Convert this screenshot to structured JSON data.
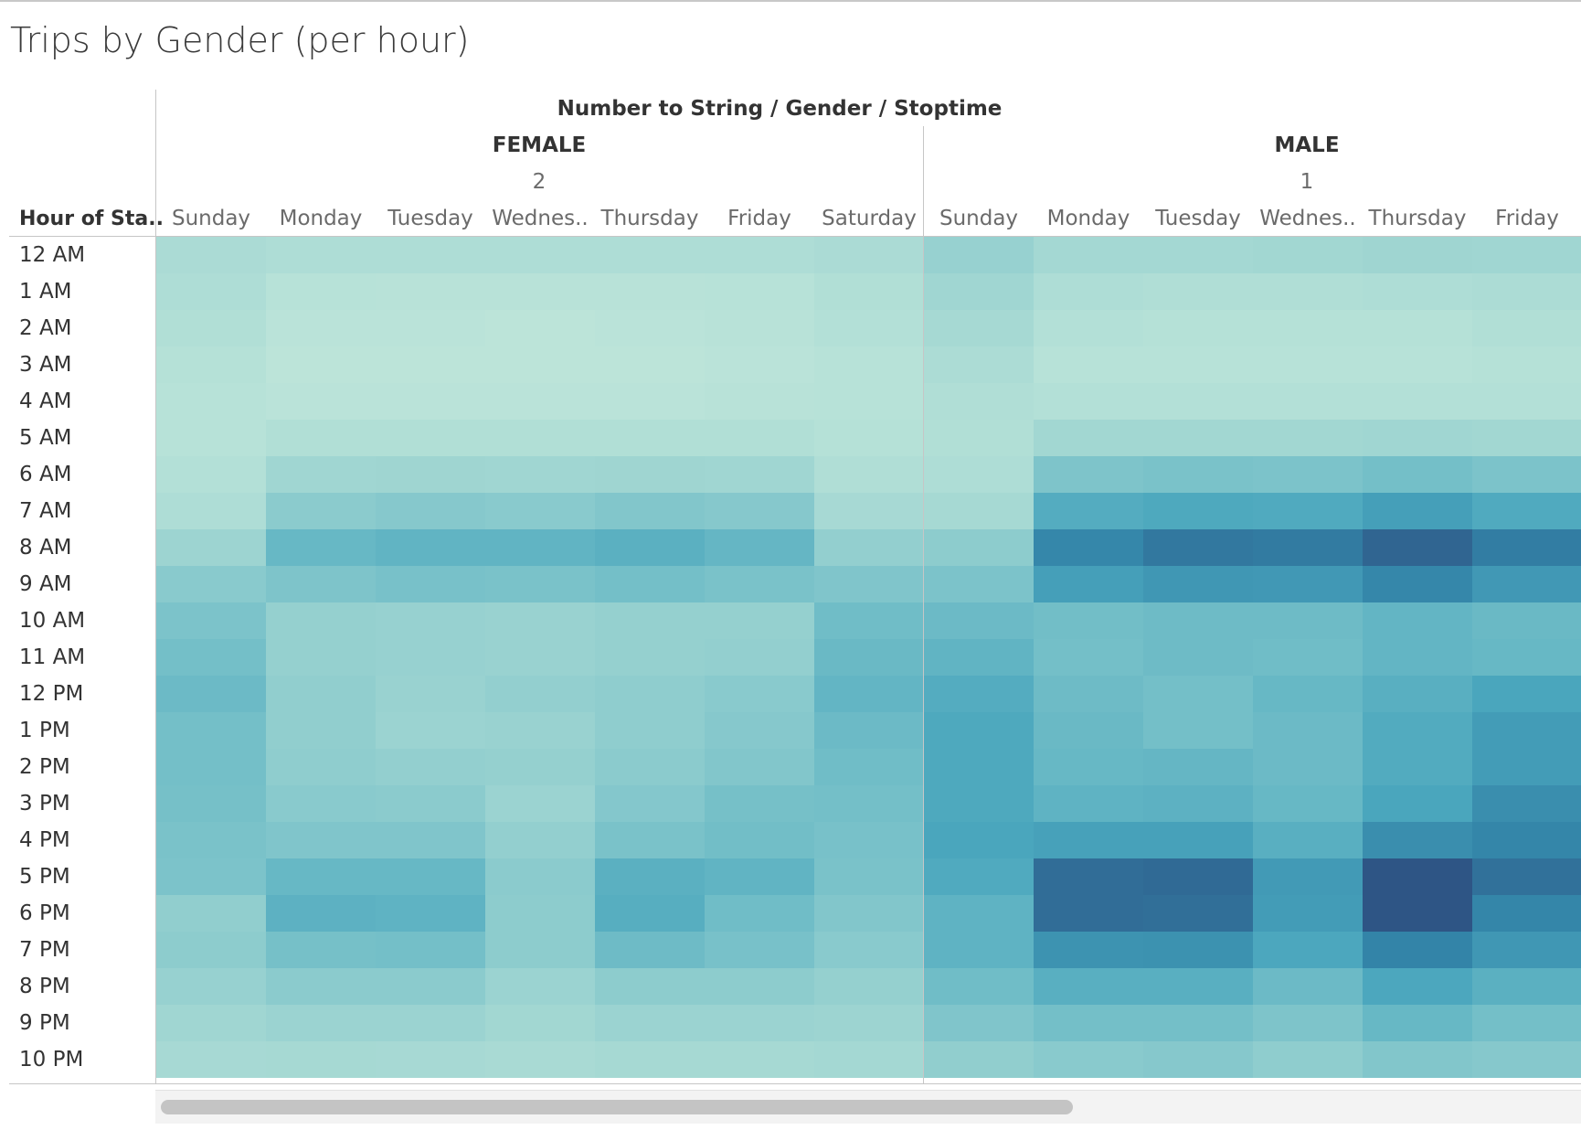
{
  "title": "Trips by Gender (per hour)",
  "chart_data": {
    "type": "heatmap",
    "title": "Trips by Gender (per hour)",
    "column_header_title": "Number to String / Gender / Stoptime",
    "row_header_title": "Hour of Sta..",
    "color_scale": {
      "low": "#bfe6da",
      "high": "#2e5585",
      "unit": "relative trip intensity (0-1)"
    },
    "rows": [
      "12 AM",
      "1 AM",
      "2 AM",
      "3 AM",
      "4 AM",
      "5 AM",
      "6 AM",
      "7 AM",
      "8 AM",
      "9 AM",
      "10 AM",
      "11 AM",
      "12 PM",
      "1 PM",
      "2 PM",
      "3 PM",
      "4 PM",
      "5 PM",
      "6 PM",
      "7 PM",
      "8 PM",
      "9 PM",
      "10 PM"
    ],
    "groups": [
      {
        "gender": "FEMALE",
        "code": "2",
        "columns": [
          "Sunday",
          "Monday",
          "Tuesday",
          "Wednes..",
          "Thursday",
          "Friday",
          "Saturday"
        ],
        "values": [
          [
            0.12,
            0.1,
            0.1,
            0.1,
            0.1,
            0.1,
            0.12
          ],
          [
            0.1,
            0.05,
            0.04,
            0.04,
            0.04,
            0.05,
            0.08
          ],
          [
            0.08,
            0.03,
            0.03,
            0.02,
            0.03,
            0.04,
            0.07
          ],
          [
            0.06,
            0.02,
            0.02,
            0.02,
            0.02,
            0.03,
            0.05
          ],
          [
            0.05,
            0.03,
            0.03,
            0.03,
            0.03,
            0.04,
            0.05
          ],
          [
            0.05,
            0.08,
            0.08,
            0.08,
            0.08,
            0.08,
            0.06
          ],
          [
            0.07,
            0.18,
            0.19,
            0.18,
            0.19,
            0.18,
            0.09
          ],
          [
            0.1,
            0.29,
            0.31,
            0.3,
            0.33,
            0.31,
            0.14
          ],
          [
            0.2,
            0.46,
            0.49,
            0.49,
            0.52,
            0.47,
            0.25
          ],
          [
            0.3,
            0.35,
            0.38,
            0.37,
            0.4,
            0.37,
            0.34
          ],
          [
            0.36,
            0.24,
            0.23,
            0.22,
            0.24,
            0.24,
            0.42
          ],
          [
            0.4,
            0.24,
            0.23,
            0.22,
            0.24,
            0.25,
            0.45
          ],
          [
            0.44,
            0.26,
            0.22,
            0.25,
            0.27,
            0.3,
            0.48
          ],
          [
            0.4,
            0.26,
            0.21,
            0.22,
            0.27,
            0.31,
            0.44
          ],
          [
            0.4,
            0.27,
            0.25,
            0.24,
            0.29,
            0.33,
            0.42
          ],
          [
            0.39,
            0.3,
            0.29,
            0.21,
            0.32,
            0.39,
            0.4
          ],
          [
            0.37,
            0.34,
            0.34,
            0.25,
            0.37,
            0.41,
            0.38
          ],
          [
            0.36,
            0.46,
            0.46,
            0.29,
            0.52,
            0.49,
            0.37
          ],
          [
            0.26,
            0.51,
            0.5,
            0.28,
            0.54,
            0.42,
            0.33
          ],
          [
            0.28,
            0.39,
            0.4,
            0.28,
            0.43,
            0.38,
            0.3
          ],
          [
            0.23,
            0.29,
            0.29,
            0.21,
            0.28,
            0.28,
            0.24
          ],
          [
            0.18,
            0.21,
            0.21,
            0.17,
            0.21,
            0.21,
            0.2
          ],
          [
            0.14,
            0.15,
            0.14,
            0.13,
            0.15,
            0.15,
            0.16
          ]
        ]
      },
      {
        "gender": "MALE",
        "code": "1",
        "columns": [
          "Sunday",
          "Monday",
          "Tuesday",
          "Wednes..",
          "Thursday",
          "Friday"
        ],
        "values": [
          [
            0.23,
            0.16,
            0.16,
            0.17,
            0.19,
            0.18
          ],
          [
            0.18,
            0.1,
            0.09,
            0.09,
            0.1,
            0.11
          ],
          [
            0.15,
            0.07,
            0.06,
            0.06,
            0.06,
            0.08
          ],
          [
            0.11,
            0.05,
            0.05,
            0.05,
            0.05,
            0.06
          ],
          [
            0.09,
            0.07,
            0.07,
            0.07,
            0.07,
            0.07
          ],
          [
            0.08,
            0.17,
            0.17,
            0.17,
            0.18,
            0.17
          ],
          [
            0.1,
            0.35,
            0.37,
            0.36,
            0.4,
            0.36
          ],
          [
            0.15,
            0.55,
            0.58,
            0.57,
            0.64,
            0.57
          ],
          [
            0.28,
            0.78,
            0.85,
            0.84,
            0.93,
            0.83
          ],
          [
            0.36,
            0.64,
            0.69,
            0.68,
            0.78,
            0.68
          ],
          [
            0.44,
            0.41,
            0.43,
            0.43,
            0.48,
            0.45
          ],
          [
            0.49,
            0.4,
            0.43,
            0.42,
            0.48,
            0.46
          ],
          [
            0.55,
            0.43,
            0.4,
            0.46,
            0.53,
            0.6
          ],
          [
            0.58,
            0.45,
            0.4,
            0.44,
            0.56,
            0.66
          ],
          [
            0.58,
            0.46,
            0.47,
            0.44,
            0.56,
            0.66
          ],
          [
            0.58,
            0.5,
            0.51,
            0.46,
            0.6,
            0.74
          ],
          [
            0.6,
            0.63,
            0.63,
            0.53,
            0.74,
            0.79
          ],
          [
            0.57,
            0.9,
            0.91,
            0.67,
            1.0,
            0.88
          ],
          [
            0.5,
            0.9,
            0.89,
            0.66,
            1.0,
            0.79
          ],
          [
            0.5,
            0.71,
            0.72,
            0.59,
            0.8,
            0.69
          ],
          [
            0.42,
            0.53,
            0.53,
            0.44,
            0.59,
            0.52
          ],
          [
            0.34,
            0.4,
            0.4,
            0.35,
            0.46,
            0.4
          ],
          [
            0.26,
            0.3,
            0.31,
            0.27,
            0.33,
            0.31
          ]
        ]
      }
    ]
  }
}
